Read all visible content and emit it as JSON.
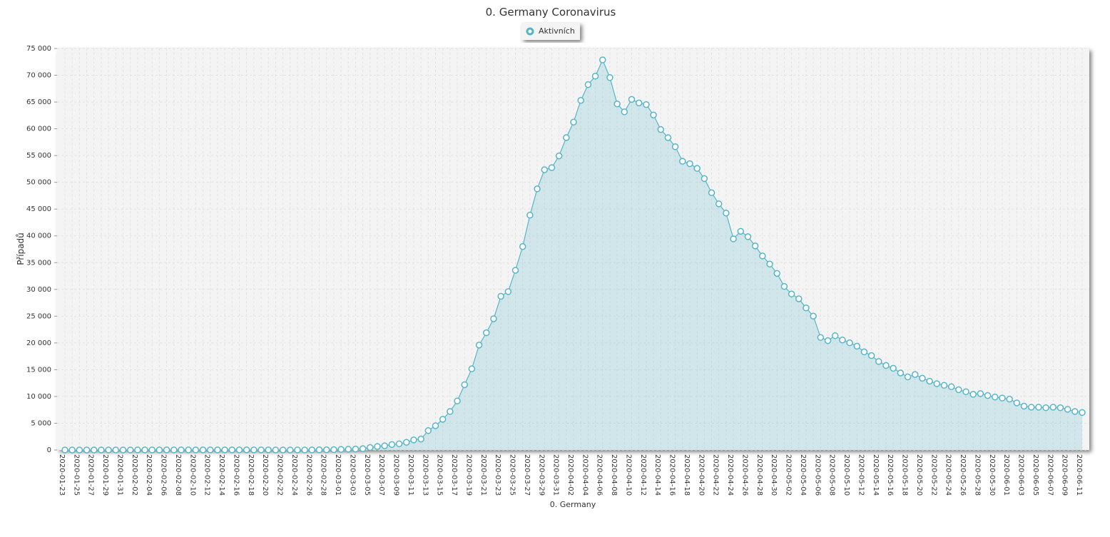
{
  "chart_data": {
    "type": "area",
    "title": "0. Germany Coronavirus",
    "x_label": "0. Germany",
    "y_label": "Případů",
    "categories": [
      "2020-01-23",
      null,
      "2020-01-25",
      null,
      "2020-01-27",
      null,
      "2020-01-29",
      null,
      "2020-01-31",
      null,
      "2020-02-02",
      null,
      "2020-02-04",
      null,
      "2020-02-06",
      null,
      "2020-02-08",
      null,
      "2020-02-10",
      null,
      "2020-02-12",
      null,
      "2020-02-14",
      null,
      "2020-02-16",
      null,
      "2020-02-18",
      null,
      "2020-02-20",
      null,
      "2020-02-22",
      null,
      "2020-02-24",
      null,
      "2020-02-26",
      null,
      "2020-02-28",
      null,
      "2020-03-01",
      null,
      "2020-03-03",
      null,
      "2020-03-05",
      null,
      "2020-03-07",
      null,
      "2020-03-09",
      null,
      "2020-03-11",
      null,
      "2020-03-13",
      null,
      "2020-03-15",
      null,
      "2020-03-17",
      null,
      "2020-03-19",
      null,
      "2020-03-21",
      null,
      "2020-03-23",
      null,
      "2020-03-25",
      null,
      "2020-03-27",
      null,
      "2020-03-29",
      null,
      "2020-03-31",
      null,
      "2020-04-02",
      null,
      "2020-04-04",
      null,
      "2020-04-06",
      null,
      "2020-04-08",
      null,
      "2020-04-10",
      null,
      "2020-04-12",
      null,
      "2020-04-14",
      null,
      "2020-04-16",
      null,
      "2020-04-18",
      null,
      "2020-04-20",
      null,
      "2020-04-22",
      null,
      "2020-04-24",
      null,
      "2020-04-26",
      null,
      "2020-04-28",
      null,
      "2020-04-30",
      null,
      "2020-05-02",
      null,
      "2020-05-04",
      null,
      "2020-05-06",
      null,
      "2020-05-08",
      null,
      "2020-05-10",
      null,
      "2020-05-12",
      null,
      "2020-05-14",
      null,
      "2020-05-16",
      null,
      "2020-05-18",
      null,
      "2020-05-20",
      null,
      "2020-05-22",
      null,
      "2020-05-24",
      null,
      "2020-05-26",
      null,
      "2020-05-28",
      null,
      "2020-05-30",
      null,
      "2020-06-01",
      null,
      "2020-06-03",
      null,
      "2020-06-05",
      null,
      "2020-06-07",
      null,
      "2020-06-09",
      null,
      "2020-06-11"
    ],
    "series": [
      {
        "name": "Aktivních",
        "color": "#57b5c9",
        "values": [
          0,
          0,
          0,
          0,
          1,
          4,
          4,
          4,
          5,
          8,
          10,
          12,
          12,
          12,
          12,
          13,
          13,
          14,
          14,
          16,
          16,
          16,
          16,
          16,
          16,
          16,
          16,
          16,
          16,
          2,
          2,
          2,
          2,
          3,
          11,
          30,
          32,
          63,
          114,
          143,
          180,
          246,
          466,
          653,
          781,
          1022,
          1156,
          1437,
          1880,
          2050,
          3622,
          4530,
          5738,
          7188,
          9166,
          12194,
          15163,
          19601,
          21896,
          24513,
          28710,
          29586,
          33570,
          37998,
          43871,
          48781,
          52351,
          52740,
          54933,
          58349,
          61247,
          65309,
          68248,
          69839,
          72864,
          69566,
          64647,
          63167,
          65491,
          64826,
          64532,
          62578,
          59865,
          58349,
          56646,
          53931,
          53483,
          52598,
          50703,
          48058,
          45969,
          44254,
          39439,
          40851,
          39845,
          38117,
          36248,
          34736,
          32993,
          30549,
          29149,
          28247,
          26541,
          25011,
          21022,
          20425,
          21340,
          20554,
          20026,
          19394,
          18331,
          17634,
          16527,
          15782,
          15265,
          14388,
          13649,
          14105,
          13400,
          12856,
          12386,
          12082,
          11816,
          11251,
          10880,
          10403,
          10535,
          10177,
          9900,
          9700,
          9500,
          8800,
          8200,
          8000,
          8000,
          7900,
          8000,
          7900,
          7600,
          7200,
          7000
        ]
      }
    ],
    "ylim": [
      0,
      75000
    ],
    "yticks": [
      0,
      {
        "value": 5000,
        "label": "5 000"
      },
      {
        "value": 10000,
        "label": "10 000"
      },
      {
        "value": 15000,
        "label": "15 000"
      },
      {
        "value": 20000,
        "label": "20 000"
      },
      {
        "value": 25000,
        "label": "25 000"
      },
      {
        "value": 30000,
        "label": "30 000"
      },
      {
        "value": 35000,
        "label": "35 000"
      },
      {
        "value": 40000,
        "label": "40 000"
      },
      {
        "value": 45000,
        "label": "45 000"
      },
      {
        "value": 50000,
        "label": "50 000"
      },
      {
        "value": 55000,
        "label": "55 000"
      },
      {
        "value": 60000,
        "label": "60 000"
      },
      {
        "value": 65000,
        "label": "65 000"
      },
      {
        "value": 70000,
        "label": "70 000"
      },
      {
        "value": 75000,
        "label": "75 000"
      }
    ],
    "grid": true,
    "legend": "top"
  }
}
